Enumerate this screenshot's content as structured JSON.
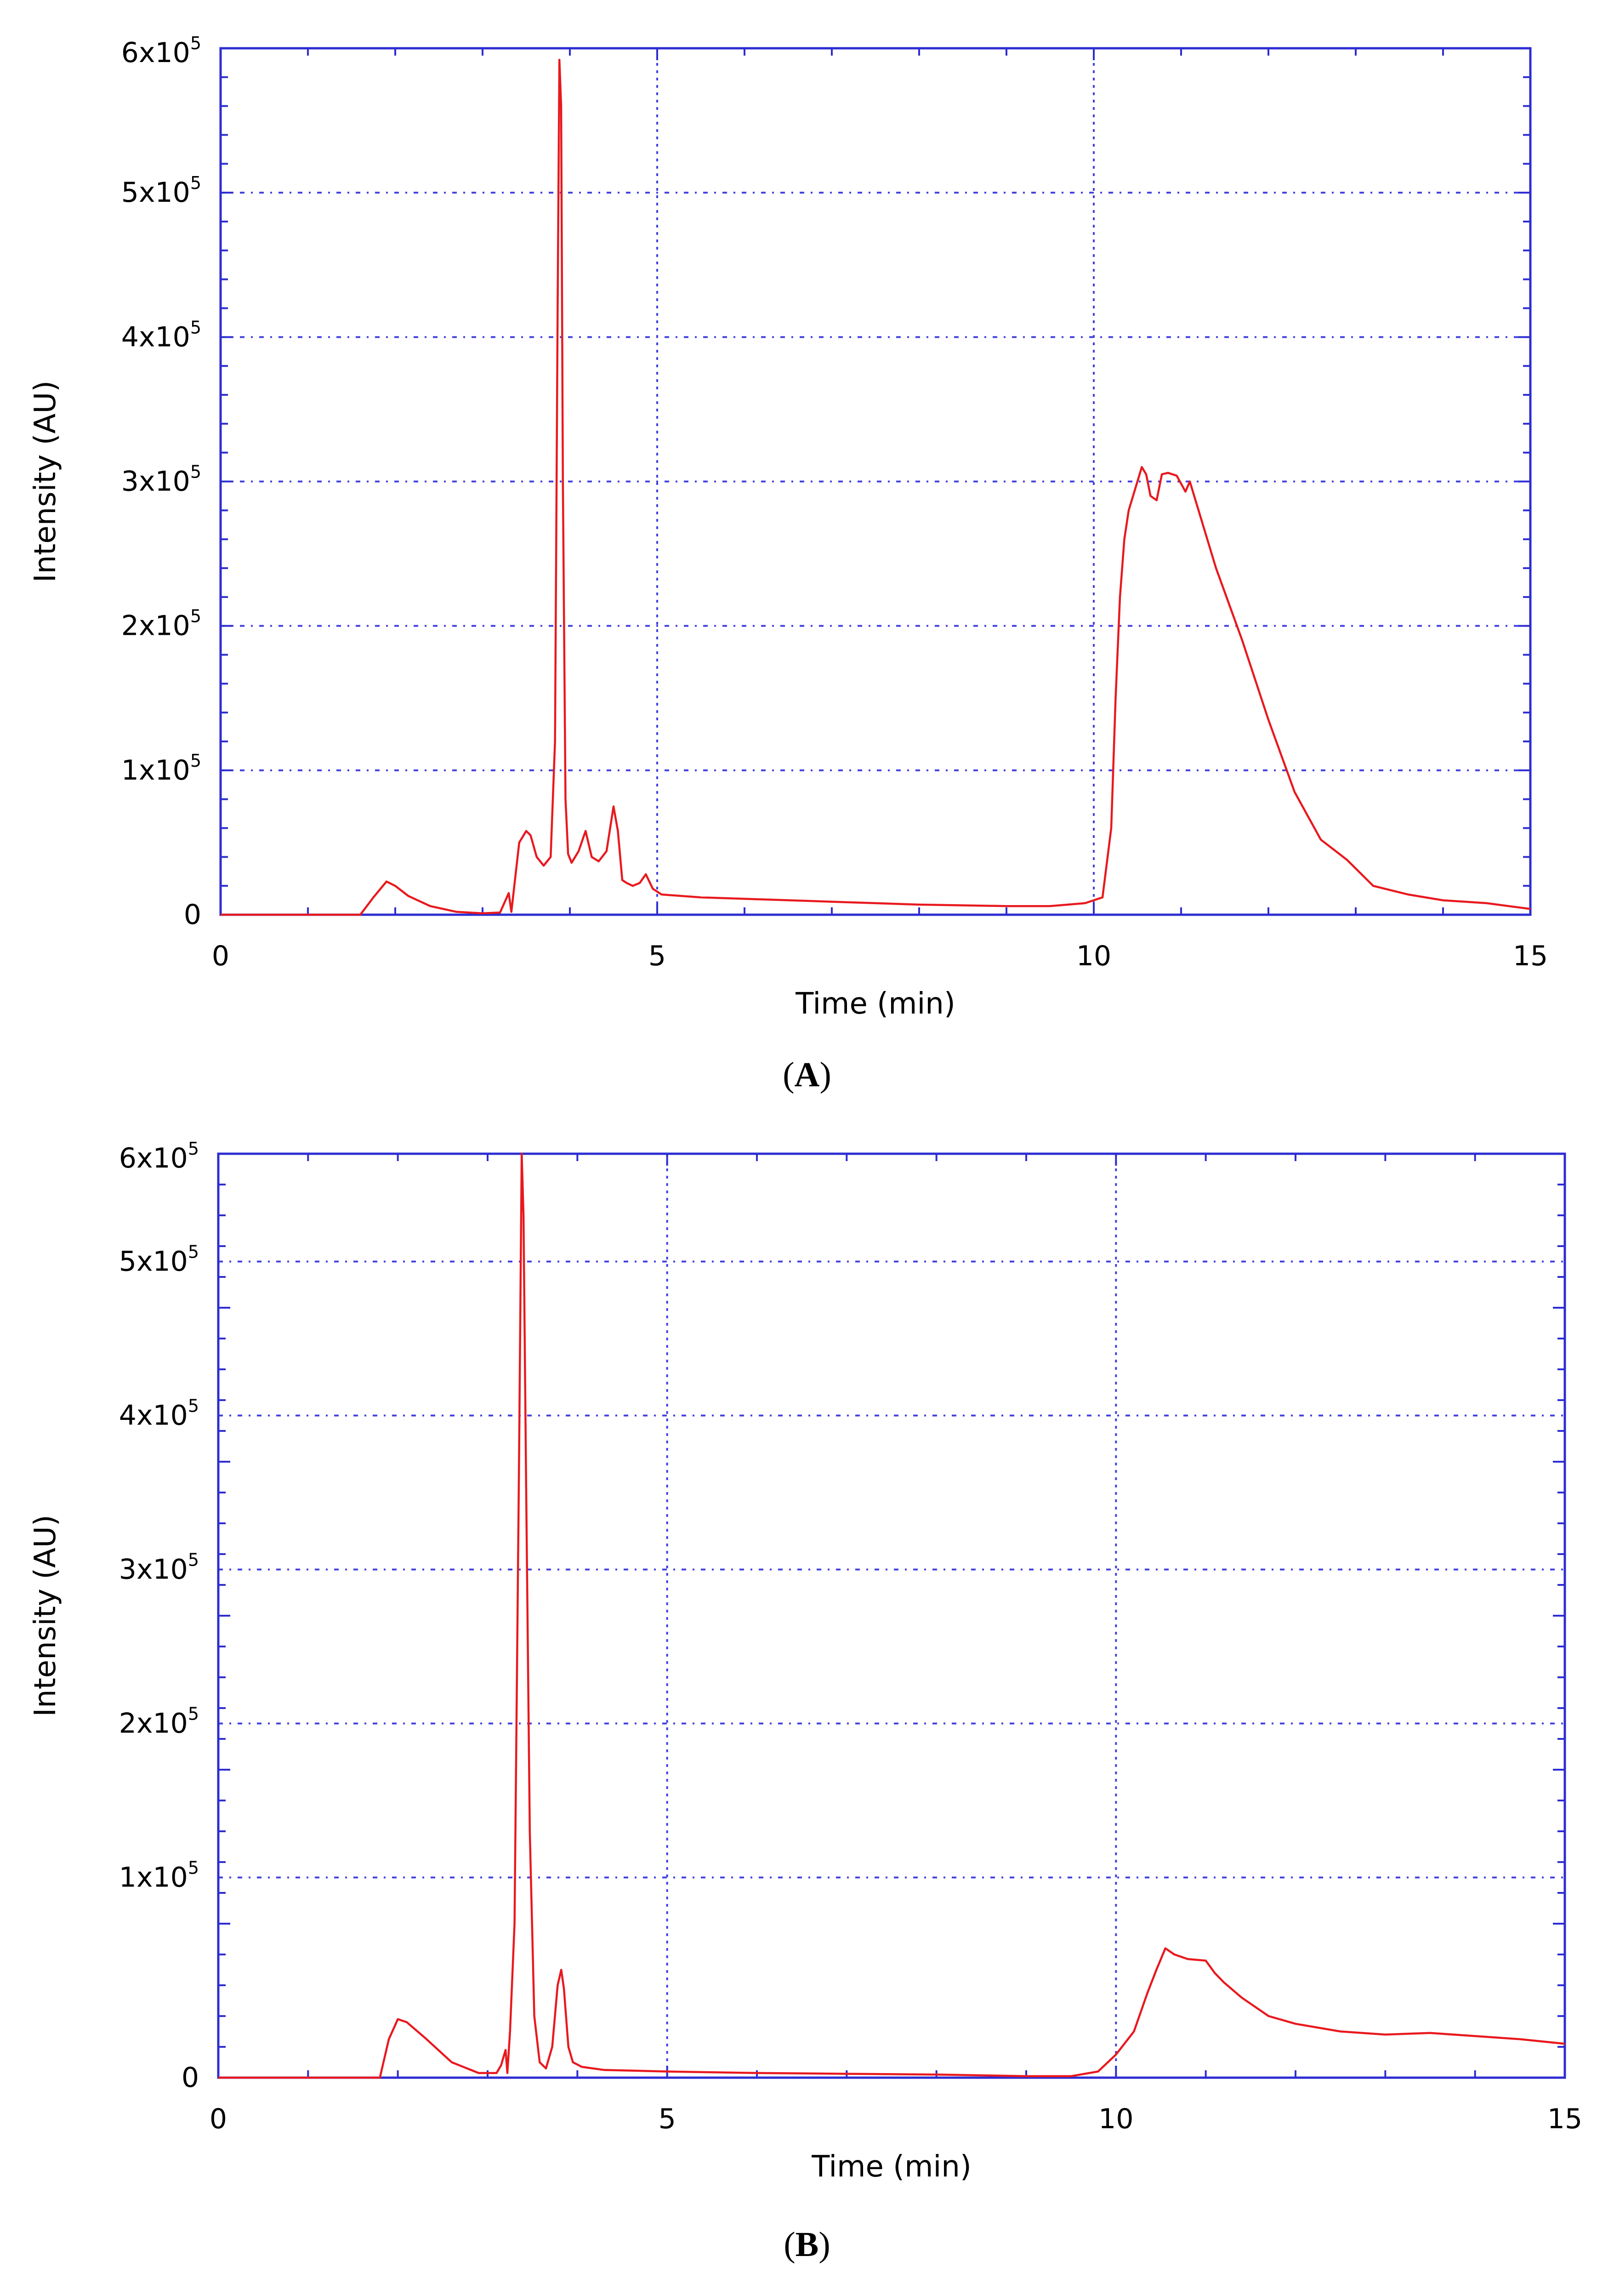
{
  "chart_data": [
    {
      "id": "A",
      "panel_label": "A",
      "type": "line",
      "xlabel": "Time (min)",
      "ylabel": "Intensity (AU)",
      "xlim": [
        0,
        15
      ],
      "ylim": [
        0,
        600000
      ],
      "xticks": [
        0,
        5,
        10,
        15
      ],
      "xtick_labels": [
        "0",
        "5",
        "10",
        "15"
      ],
      "yticks": [
        0,
        100000,
        200000,
        300000,
        400000,
        500000,
        600000
      ],
      "ytick_labels": [
        {
          "base": "0",
          "exp": ""
        },
        {
          "base": "1x10",
          "exp": "5"
        },
        {
          "base": "2x10",
          "exp": "5"
        },
        {
          "base": "3x10",
          "exp": "5"
        },
        {
          "base": "4x10",
          "exp": "5"
        },
        {
          "base": "5x10",
          "exp": "5"
        },
        {
          "base": "6x10",
          "exp": "5"
        }
      ],
      "grid": true,
      "line_color": "#e8191e",
      "frame_color": "#2d2dd2",
      "grid_color": "#4040e0",
      "series": [
        {
          "x": [
            0,
            1.6,
            1.75,
            1.9,
            2.0,
            2.15,
            2.4,
            2.7,
            3.0,
            3.2,
            3.3,
            3.33,
            3.36,
            3.42,
            3.5,
            3.55,
            3.62,
            3.7,
            3.78,
            3.83,
            3.86,
            3.88,
            3.9,
            3.92,
            3.95,
            3.98,
            4.02,
            4.1,
            4.18,
            4.25,
            4.33,
            4.42,
            4.5,
            4.55,
            4.6,
            4.65,
            4.72,
            4.8,
            4.87,
            4.95,
            5.05,
            5.5,
            6.0,
            7.0,
            8.0,
            9.0,
            9.5,
            9.9,
            10.1,
            10.2,
            10.25,
            10.3,
            10.35,
            10.4,
            10.5,
            10.55,
            10.6,
            10.65,
            10.72,
            10.78,
            10.85,
            10.95,
            11.05,
            11.1,
            11.2,
            11.4,
            11.7,
            12.0,
            12.3,
            12.6,
            12.9,
            13.2,
            13.6,
            14.0,
            14.5,
            15.0
          ],
          "y": [
            0,
            0,
            12000,
            23000,
            20000,
            13000,
            6000,
            2000,
            1000,
            1500,
            15000,
            2000,
            18000,
            50000,
            58000,
            55000,
            40000,
            34000,
            40000,
            120000,
            420000,
            592000,
            560000,
            300000,
            80000,
            42000,
            36000,
            44000,
            58000,
            40000,
            37000,
            44000,
            75000,
            58000,
            24000,
            22000,
            20000,
            22000,
            28000,
            18000,
            14000,
            12000,
            11000,
            9000,
            7000,
            6000,
            6000,
            8000,
            12000,
            60000,
            150000,
            220000,
            260000,
            280000,
            300000,
            310000,
            305000,
            290000,
            287000,
            305000,
            306000,
            304000,
            293000,
            300000,
            280000,
            240000,
            190000,
            135000,
            85000,
            52000,
            38000,
            20000,
            14000,
            10000,
            8000,
            4000
          ]
        }
      ]
    },
    {
      "id": "B",
      "panel_label": "B",
      "type": "line",
      "xlabel": "Time (min)",
      "ylabel": "Intensity (AU)",
      "xlim": [
        0,
        15
      ],
      "ylim": [
        0,
        600000
      ],
      "xticks": [
        0,
        5,
        10,
        15
      ],
      "xtick_labels": [
        "0",
        "5",
        "10",
        "15"
      ],
      "yticks": [
        0,
        100000,
        200000,
        300000,
        400000,
        500000,
        600000
      ],
      "ytick_labels": [
        {
          "base": "0",
          "exp": ""
        },
        {
          "base": "1x10",
          "exp": "5"
        },
        {
          "base": "2x10",
          "exp": "5"
        },
        {
          "base": "3x10",
          "exp": "5"
        },
        {
          "base": "4x10",
          "exp": "5"
        },
        {
          "base": "5x10",
          "exp": "5"
        },
        {
          "base": "6x10",
          "exp": "5"
        }
      ],
      "grid_y": [
        0,
        130000,
        230000,
        330000,
        430000,
        530000,
        630000
      ],
      "grid": true,
      "line_color": "#e8191e",
      "frame_color": "#2d2dd2",
      "grid_color": "#4040e0",
      "series": [
        {
          "x": [
            0,
            1.8,
            1.9,
            2.0,
            2.1,
            2.3,
            2.6,
            2.9,
            3.1,
            3.15,
            3.2,
            3.22,
            3.25,
            3.3,
            3.35,
            3.38,
            3.4,
            3.43,
            3.47,
            3.52,
            3.58,
            3.65,
            3.72,
            3.78,
            3.82,
            3.85,
            3.9,
            3.95,
            4.05,
            4.3,
            5.0,
            6.0,
            7.0,
            8.0,
            9.0,
            9.5,
            9.8,
            10.0,
            10.2,
            10.35,
            10.45,
            10.55,
            10.65,
            10.8,
            11.0,
            11.1,
            11.2,
            11.4,
            11.7,
            12.0,
            12.5,
            13.0,
            13.5,
            14.0,
            14.5,
            15.0
          ],
          "y": [
            0,
            0,
            25000,
            38000,
            36000,
            26000,
            10000,
            3000,
            3000,
            8000,
            18000,
            3000,
            30000,
            100000,
            400000,
            600000,
            560000,
            380000,
            160000,
            40000,
            10000,
            6000,
            20000,
            60000,
            70000,
            58000,
            20000,
            10000,
            7000,
            5000,
            4000,
            3000,
            2500,
            2000,
            1000,
            1000,
            4000,
            15000,
            30000,
            55000,
            70000,
            84000,
            80000,
            77000,
            76000,
            68000,
            62000,
            52000,
            40000,
            35000,
            30000,
            28000,
            29000,
            27000,
            25000,
            22000
          ]
        }
      ]
    }
  ]
}
